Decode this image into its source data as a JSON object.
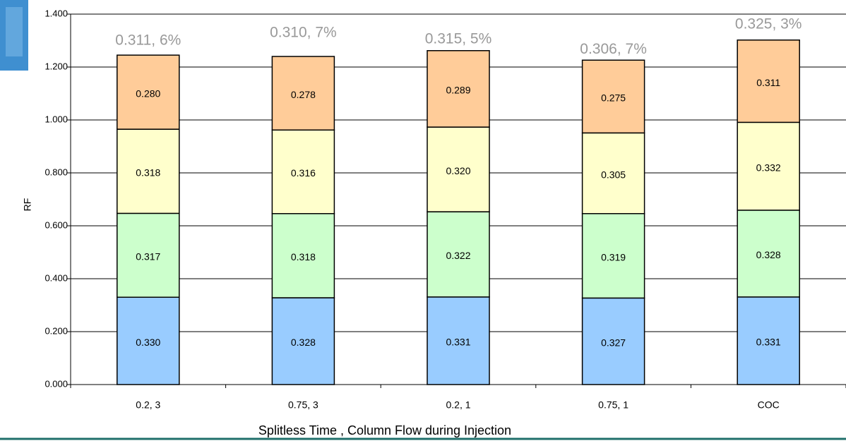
{
  "chart_data": {
    "type": "stacked-bar",
    "x_label": "Splitless Time , Column Flow during Injection",
    "y_label": "RF",
    "categories": [
      "0.2, 3",
      "0.75, 3",
      "0.2, 1",
      "0.75, 1",
      "COC"
    ],
    "series": [
      {
        "color": "#99ccff",
        "values": [
          0.33,
          0.328,
          0.331,
          0.327,
          0.331
        ],
        "value_labels": [
          "0.330",
          "0.328",
          "0.331",
          "0.327",
          "0.331"
        ]
      },
      {
        "color": "#ccffcc",
        "values": [
          0.317,
          0.318,
          0.322,
          0.319,
          0.328
        ],
        "value_labels": [
          "0.317",
          "0.318",
          "0.322",
          "0.319",
          "0.328"
        ]
      },
      {
        "color": "#ffffcc",
        "values": [
          0.318,
          0.316,
          0.32,
          0.305,
          0.332
        ],
        "value_labels": [
          "0.318",
          "0.316",
          "0.320",
          "0.305",
          "0.332"
        ]
      },
      {
        "color": "#ffcc99",
        "values": [
          0.28,
          0.278,
          0.289,
          0.275,
          0.311
        ],
        "value_labels": [
          "0.280",
          "0.278",
          "0.289",
          "0.275",
          "0.311"
        ]
      }
    ],
    "annotations": [
      "0.311, 6%",
      "0.310, 7%",
      "0.315, 5%",
      "0.306, 7%",
      "0.325, 3%"
    ],
    "ylim": [
      0,
      1.4
    ],
    "yticks": [
      {
        "value": 0,
        "label": "0.000"
      },
      {
        "value": 0.2,
        "label": "0.200"
      },
      {
        "value": 0.4,
        "label": "0.400"
      },
      {
        "value": 0.6,
        "label": "0.600"
      },
      {
        "value": 0.8,
        "label": "0.800"
      },
      {
        "value": 1.0,
        "label": "1.000"
      },
      {
        "value": 1.2,
        "label": "1.200"
      },
      {
        "value": 1.4,
        "label": "1.400"
      }
    ],
    "grid": true
  }
}
